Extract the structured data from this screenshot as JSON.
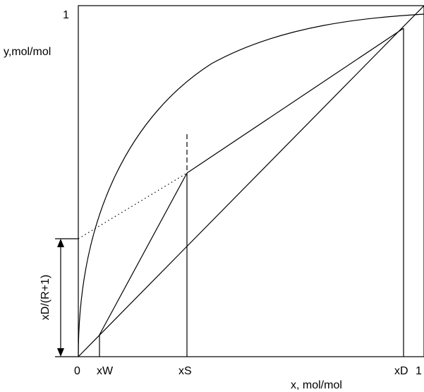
{
  "axes": {
    "y_label": "y,mol/mol",
    "y_top": "1",
    "x_label": "x, mol/mol",
    "origin": "0",
    "x_right": "1"
  },
  "points": {
    "xW": "xW",
    "xS": "xS",
    "xD": "xD"
  },
  "intercept_label": "xD/(R+1)",
  "colors": {
    "line": "#000000",
    "background": "#ffffff"
  }
}
